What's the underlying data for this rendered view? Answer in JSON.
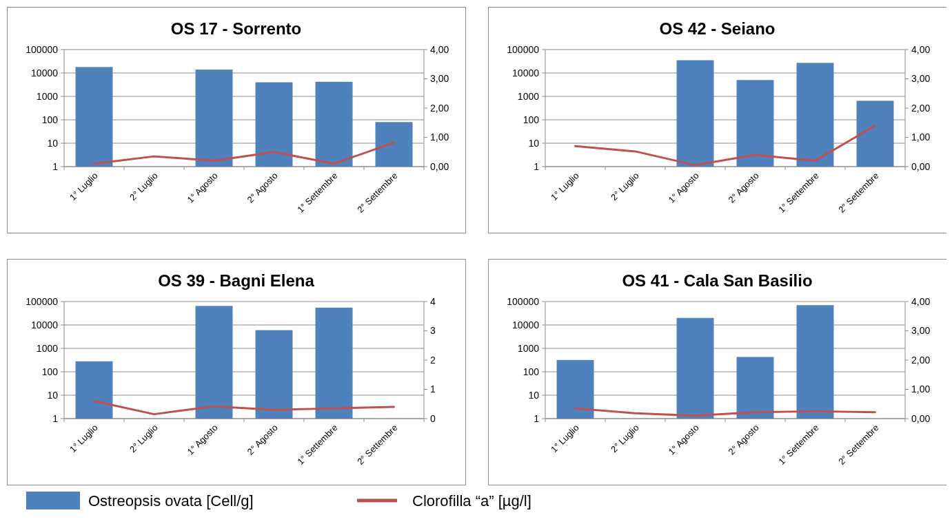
{
  "chart_data": [
    {
      "type": "bar",
      "title": "OS 17 - Sorrento",
      "categories": [
        "1° Luglio",
        "2° Luglio",
        "1° Agosto",
        "2° Agosto",
        "1° Settembre",
        "2° Settembre"
      ],
      "series": [
        {
          "name": "Ostreopsis ovata [Cell/g]",
          "color": "#4f81bd",
          "values": [
            18000,
            null,
            14000,
            4000,
            4200,
            80
          ]
        },
        {
          "name": "Clorofilla “a” [µg/l]",
          "type": "line",
          "axis": "y2",
          "color": "#c0504d",
          "values": [
            0.1,
            0.35,
            0.2,
            0.5,
            0.1,
            0.82
          ]
        }
      ],
      "log": "y",
      "ylim": [
        1,
        100000
      ],
      "yticks": [
        1,
        10,
        100,
        1000,
        10000,
        100000
      ],
      "y2lim": [
        0,
        4
      ],
      "y2ticks": [
        {
          "value": 0,
          "label": "0,00"
        },
        {
          "value": 1,
          "label": "1,00"
        },
        {
          "value": 2,
          "label": "2,00"
        },
        {
          "value": 3,
          "label": "3,00"
        },
        {
          "value": 4,
          "label": "4,00"
        }
      ],
      "grid": "y",
      "legend": "bottom",
      "marker": "none",
      "line_style": "solid"
    },
    {
      "type": "bar",
      "title": "OS 42 - Seiano",
      "categories": [
        "1° Luglio",
        "2° Luglio",
        "1° Agosto",
        "2° Agosto",
        "1° Settembre",
        "2° Settembre"
      ],
      "series": [
        {
          "color": "#4f81bd",
          "values": [
            null,
            null,
            35000,
            5000,
            27000,
            650
          ]
        },
        {
          "type": "line",
          "axis": "y2",
          "color": "#c0504d",
          "values": [
            0.7,
            0.52,
            0.05,
            0.4,
            0.2,
            1.4
          ]
        }
      ],
      "log": "y",
      "ylim": [
        1,
        100000
      ],
      "yticks": [
        1,
        10,
        100,
        1000,
        10000,
        100000
      ],
      "y2lim": [
        0,
        4
      ],
      "y2ticks": [
        {
          "value": 0,
          "label": "0,00"
        },
        {
          "value": 1,
          "label": "1,00"
        },
        {
          "value": 2,
          "label": "2,00"
        },
        {
          "value": 3,
          "label": "3,00"
        },
        {
          "value": 4,
          "label": "4,00"
        }
      ],
      "grid": "y",
      "marker": "none",
      "line_style": "solid"
    },
    {
      "type": "bar",
      "title": "OS 39 - Bagni Elena",
      "categories": [
        "1° Luglio",
        "2° Luglio",
        "1° Agosto",
        "2° Agosto",
        "1° Settembre",
        "2° Settembre"
      ],
      "series": [
        {
          "color": "#4f81bd",
          "values": [
            280,
            null,
            65000,
            6000,
            55000,
            null
          ]
        },
        {
          "type": "line",
          "axis": "y2",
          "color": "#c0504d",
          "values": [
            0.6,
            0.15,
            0.42,
            0.3,
            0.35,
            0.4
          ]
        }
      ],
      "log": "y",
      "ylim": [
        1,
        100000
      ],
      "yticks": [
        1,
        10,
        100,
        1000,
        10000,
        100000
      ],
      "y2lim": [
        0,
        4
      ],
      "y2ticks": [
        0,
        1,
        2,
        3,
        4
      ],
      "grid": "y",
      "marker": "none",
      "line_style": "solid"
    },
    {
      "type": "bar",
      "title": "OS 41 - Cala San Basilio",
      "categories": [
        "1° Luglio",
        "2° Luglio",
        "1° Agosto",
        "2° Agosto",
        "1° Settembre",
        "2° Settembre"
      ],
      "series": [
        {
          "color": "#4f81bd",
          "values": [
            320,
            null,
            20000,
            430,
            70000,
            null
          ]
        },
        {
          "type": "line",
          "axis": "y2",
          "color": "#c0504d",
          "values": [
            0.35,
            0.18,
            0.1,
            0.22,
            0.25,
            0.22
          ]
        }
      ],
      "log": "y",
      "ylim": [
        1,
        100000
      ],
      "yticks": [
        1,
        10,
        100,
        1000,
        10000,
        100000
      ],
      "y2lim": [
        0,
        4
      ],
      "y2ticks": [
        {
          "value": 0,
          "label": "0,00"
        },
        {
          "value": 1,
          "label": "1,00"
        },
        {
          "value": 2,
          "label": "2,00"
        },
        {
          "value": 3,
          "label": "3,00"
        },
        {
          "value": 4,
          "label": "4,00"
        }
      ],
      "grid": "y",
      "marker": "none",
      "line_style": "solid"
    }
  ]
}
